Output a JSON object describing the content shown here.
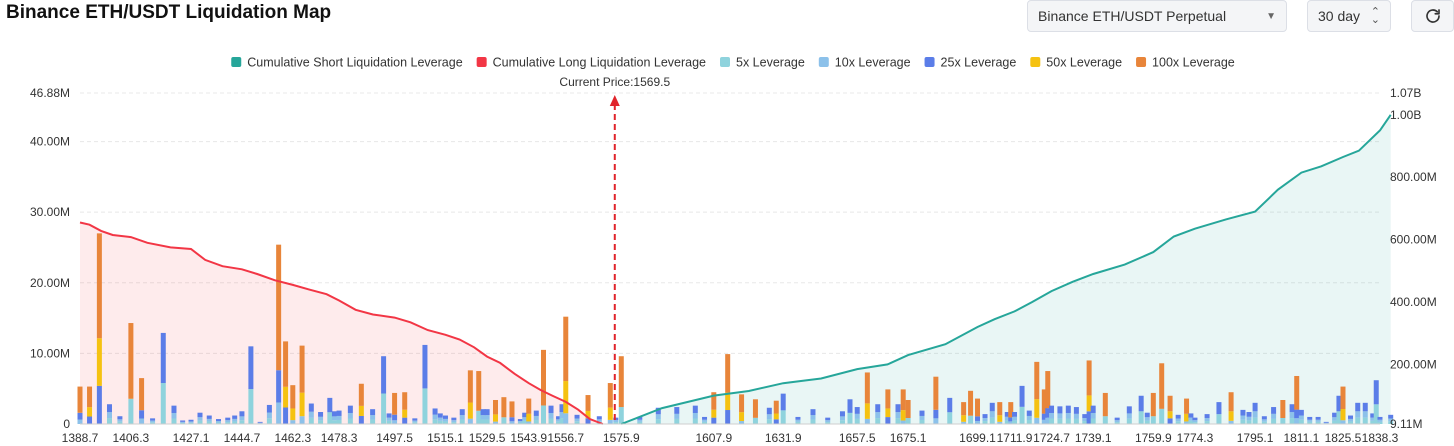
{
  "header": {
    "title": "Binance ETH/USDT Liquidation Map",
    "symbol_select": "Binance ETH/USDT Perpetual",
    "period_select": "30 day"
  },
  "chart_data": {
    "type": "bar",
    "subtype": "stacked-bar with cumulative lines",
    "title": "Binance ETH/USDT Liquidation Map",
    "current_price_label": "Current Price:1569.5",
    "current_price": 1569.5,
    "legend": [
      {
        "name": "Cumulative Short Liquidation Leverage",
        "color": "#26a69a"
      },
      {
        "name": "Cumulative Long Liquidation Leverage",
        "color": "#f23645"
      },
      {
        "name": "5x Leverage",
        "color": "#8fd3dd"
      },
      {
        "name": "10x Leverage",
        "color": "#8cc1ea"
      },
      {
        "name": "25x Leverage",
        "color": "#5b7de8"
      },
      {
        "name": "50x Leverage",
        "color": "#f5c211"
      },
      {
        "name": "100x Leverage",
        "color": "#e8853a"
      }
    ],
    "y_left": {
      "ticks": [
        "46.88M",
        "40.00M",
        "30.00M",
        "20.00M",
        "10.00M",
        "0"
      ],
      "tick_values": [
        46.88,
        40,
        30,
        20,
        10,
        0
      ],
      "ylim": [
        0,
        46.88
      ],
      "unit": "M"
    },
    "y_right": {
      "ticks": [
        "1.07B",
        "1.00B",
        "800.00M",
        "600.00M",
        "400.00M",
        "200.00M",
        "9.11M"
      ],
      "tick_values": [
        1070,
        1000,
        800,
        600,
        400,
        200,
        9.11
      ],
      "ylim": [
        9.11,
        1070
      ],
      "unit": "M"
    },
    "x_ticks": [
      "1388.7",
      "1406.3",
      "1427.1",
      "1444.7",
      "1462.3",
      "1478.3",
      "1497.5",
      "1515.1",
      "1529.5",
      "1543.9",
      "1556.7",
      "1575.9",
      "1607.9",
      "1631.9",
      "1657.5",
      "1675.1",
      "1699.1",
      "1711.9",
      "1724.7",
      "1739.1",
      "1759.9",
      "1774.3",
      "1795.1",
      "1811.1",
      "1825.5",
      "1838.3"
    ],
    "cumulative_long": {
      "x": [
        1388.7,
        1392,
        1396,
        1400,
        1406.3,
        1412,
        1420,
        1427.1,
        1432,
        1438,
        1444.7,
        1450,
        1456,
        1462.3,
        1468,
        1474,
        1478.3,
        1484,
        1490,
        1497.5,
        1503,
        1509,
        1515.1,
        1520,
        1525,
        1529.5,
        1534,
        1539,
        1543.9,
        1548,
        1552,
        1556.7,
        1561,
        1565,
        1569.5
      ],
      "values": [
        655,
        648,
        628,
        615,
        608,
        590,
        575,
        570,
        535,
        515,
        505,
        490,
        470,
        455,
        440,
        425,
        405,
        375,
        360,
        350,
        335,
        310,
        295,
        280,
        255,
        225,
        205,
        170,
        140,
        118,
        100,
        80,
        55,
        25,
        9.11
      ]
    },
    "cumulative_short": {
      "x": [
        1575.9,
        1590,
        1607.9,
        1620,
        1631.9,
        1645,
        1657.5,
        1668,
        1675.1,
        1688,
        1699.1,
        1705,
        1711.9,
        1718,
        1724.7,
        1732,
        1739.1,
        1750,
        1759.9,
        1767,
        1774.3,
        1785,
        1795.1,
        1803,
        1811.1,
        1818,
        1825.5,
        1831,
        1838.3,
        1842
      ],
      "values": [
        9.11,
        60,
        100,
        115,
        140,
        155,
        185,
        200,
        230,
        265,
        320,
        345,
        370,
        400,
        435,
        465,
        490,
        520,
        560,
        610,
        635,
        665,
        690,
        760,
        815,
        835,
        865,
        885,
        950,
        1000
      ]
    },
    "bar_categories_left": [
      "1388.7",
      "1392.0",
      "1395.4",
      "1398.9",
      "1402.5",
      "1406.3",
      "1410.0",
      "1413.8",
      "1417.5",
      "1421.2",
      "1424.2",
      "1427.1",
      "1430.2",
      "1433.4",
      "1436.6",
      "1439.8",
      "1442.2",
      "1444.7",
      "1447.8",
      "1451.0",
      "1454.2",
      "1457.4",
      "1459.8",
      "1462.3",
      "1465.5",
      "1468.7",
      "1471.9",
      "1475.1",
      "1476.7",
      "1478.3",
      "1482.2",
      "1486.0",
      "1489.9",
      "1493.7",
      "1495.6",
      "1497.5",
      "1501.0",
      "1504.5",
      "1508.0",
      "1511.5",
      "1513.3",
      "1515.1",
      "1518.0",
      "1520.9",
      "1523.7",
      "1526.6",
      "1528.1",
      "1529.5",
      "1532.4",
      "1535.3",
      "1538.1",
      "1541.0",
      "1542.5",
      "1543.9",
      "1546.5",
      "1549.0",
      "1551.6",
      "1554.2",
      "1555.4",
      "1556.7",
      "1560.6",
      "1564.4",
      "1568.3",
      "1572.1",
      "1574.0"
    ],
    "bar_categories_right": [
      "1575.9",
      "1582.3",
      "1588.7",
      "1595.1",
      "1601.5",
      "1604.7",
      "1607.9",
      "1612.7",
      "1617.5",
      "1622.3",
      "1627.1",
      "1629.5",
      "1631.9",
      "1637.0",
      "1642.2",
      "1647.3",
      "1652.4",
      "1655.0",
      "1657.5",
      "1661.0",
      "1664.6",
      "1668.1",
      "1671.6",
      "1673.4",
      "1675.1",
      "1679.9",
      "1684.7",
      "1689.5",
      "1694.3",
      "1696.7",
      "1699.1",
      "1701.7",
      "1704.2",
      "1706.8",
      "1709.4",
      "1710.6",
      "1711.9",
      "1714.5",
      "1717.0",
      "1719.6",
      "1722.2",
      "1723.4",
      "1724.7",
      "1727.6",
      "1730.5",
      "1733.3",
      "1736.2",
      "1737.7",
      "1739.1",
      "1743.3",
      "1747.4",
      "1751.6",
      "1755.7",
      "1757.8",
      "1759.9",
      "1762.8",
      "1765.7",
      "1768.5",
      "1771.4",
      "1772.9",
      "1774.3",
      "1778.5",
      "1782.6",
      "1786.8",
      "1790.9",
      "1793.0",
      "1795.1",
      "1798.3",
      "1801.5",
      "1804.7",
      "1807.9",
      "1809.5",
      "1811.1",
      "1814.0",
      "1816.9",
      "1819.7",
      "1822.6",
      "1824.1",
      "1825.5",
      "1828.1",
      "1830.6",
      "1833.2",
      "1835.8",
      "1837.0",
      "1838.3",
      "1842.0"
    ],
    "series_left_total": [
      5.3,
      5.3,
      27.0,
      2.8,
      1.1,
      14.3,
      6.5,
      0.8,
      12.9,
      2.6,
      0.5,
      0.6,
      1.6,
      1.2,
      0.7,
      0.9,
      1.2,
      1.8,
      11.0,
      0.3,
      2.7,
      25.4,
      11.7,
      5.5,
      11.1,
      2.9,
      1.7,
      3.7,
      1.8,
      1.9,
      2.6,
      5.7,
      2.1,
      9.6,
      1.5,
      4.4,
      4.5,
      0.8,
      11.2,
      2.2,
      1.5,
      1.2,
      0.9,
      2.1,
      7.6,
      7.5,
      2.1,
      2.1,
      3.4,
      3.8,
      3.2,
      0.7,
      1.6,
      3.6,
      1.9,
      10.5,
      2.6,
      1.1,
      2.8,
      15.2,
      1.3,
      4.1,
      1.1,
      5.8,
      0.9
    ],
    "series_right_total": [
      9.6,
      1.0,
      2.3,
      2.4,
      2.6,
      1.0,
      4.5,
      9.9,
      4.2,
      3.5,
      2.3,
      3.3,
      4.3,
      1.0,
      2.1,
      0.9,
      1.8,
      3.5,
      2.4,
      7.3,
      2.8,
      4.9,
      2.8,
      4.9,
      3.4,
      1.9,
      6.7,
      3.7,
      3.1,
      4.7,
      3.6,
      1.4,
      3.0,
      3.1,
      1.7,
      3.1,
      1.7,
      5.4,
      1.9,
      8.8,
      4.9,
      7.5,
      2.6,
      2.5,
      2.6,
      2.4,
      1.4,
      9.0,
      2.6,
      4.4,
      0.9,
      2.5,
      4.0,
      1.6,
      4.4,
      8.6,
      4.0,
      1.3,
      3.6,
      1.5,
      0.9,
      1.4,
      3.1,
      4.5,
      2.0,
      1.7,
      3.0,
      1.1,
      2.4,
      3.4,
      2.8,
      6.8,
      2.0,
      1.0,
      1.0,
      0.3,
      1.6,
      4.0,
      5.3,
      1.2,
      3.0,
      3.0,
      1.5,
      6.2,
      1.0,
      1.3
    ]
  }
}
